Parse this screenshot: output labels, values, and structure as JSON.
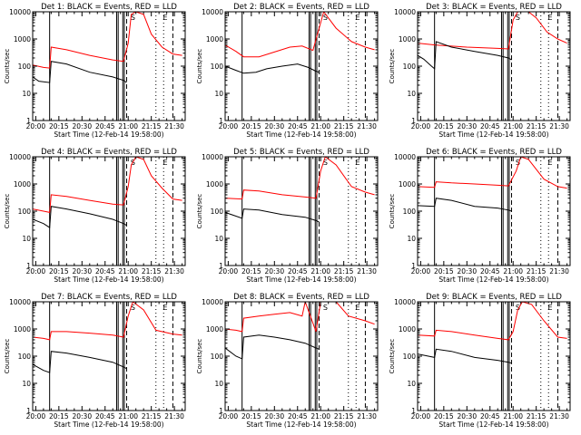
{
  "chart_data": {
    "type": "line",
    "grid": false,
    "legend": "none",
    "shared": {
      "x_tick_labels": [
        "20:00",
        "20:15",
        "20:30",
        "20:45",
        "21:00",
        "21:15",
        "21:30"
      ],
      "x_ticks_min": [
        0,
        15,
        30,
        45,
        60,
        75,
        90
      ],
      "xlim_min": [
        -2,
        97
      ],
      "xlabel": "Start Time (12-Feb-14 19:58:00)",
      "ylabel": "Counts/sec",
      "y_tick_labels": [
        "1",
        "10",
        "100",
        "1000",
        "10000"
      ],
      "y_ticks": [
        1,
        10,
        100,
        1000,
        10000
      ],
      "ylim": [
        1,
        10000
      ],
      "y_scale": "log",
      "colors": {
        "events": "#000000",
        "lld": "#ff0000",
        "axes": "#000000"
      },
      "solid_lines_min": [
        9,
        52.5,
        53.5,
        56.5,
        57.5
      ],
      "dashed_lines_min": [
        59,
        89
      ],
      "dotted_lines_min": [
        78,
        83
      ],
      "markers": [
        {
          "label": "S",
          "x_min": 61
        },
        {
          "label": "E",
          "x_min": 82
        }
      ]
    },
    "panels": [
      {
        "title": "Det 1: BLACK = Events, RED = LLD",
        "events": [
          [
            -2,
            40
          ],
          [
            2,
            28
          ],
          [
            9,
            25
          ],
          [
            10,
            150
          ],
          [
            20,
            120
          ],
          [
            35,
            60
          ],
          [
            50,
            40
          ],
          [
            57,
            30
          ],
          [
            59,
            25
          ]
        ],
        "lld": [
          [
            -2,
            110
          ],
          [
            5,
            90
          ],
          [
            9,
            85
          ],
          [
            10,
            500
          ],
          [
            20,
            400
          ],
          [
            35,
            250
          ],
          [
            50,
            170
          ],
          [
            57,
            150
          ],
          [
            60,
            700
          ],
          [
            62,
            8000
          ],
          [
            65,
            10000
          ],
          [
            70,
            8000
          ],
          [
            75,
            1500
          ],
          [
            82,
            500
          ],
          [
            89,
            280
          ],
          [
            95,
            250
          ]
        ]
      },
      {
        "title": "Det 2: BLACK = Events, RED = LLD",
        "events": [
          [
            -2,
            100
          ],
          [
            5,
            70
          ],
          [
            10,
            55
          ],
          [
            18,
            60
          ],
          [
            25,
            80
          ],
          [
            35,
            100
          ],
          [
            45,
            120
          ],
          [
            52,
            90
          ],
          [
            57,
            65
          ],
          [
            59,
            60
          ]
        ],
        "lld": [
          [
            -2,
            600
          ],
          [
            5,
            350
          ],
          [
            10,
            220
          ],
          [
            20,
            220
          ],
          [
            30,
            330
          ],
          [
            40,
            500
          ],
          [
            48,
            550
          ],
          [
            55,
            380
          ],
          [
            62,
            10000
          ],
          [
            70,
            2500
          ],
          [
            80,
            800
          ],
          [
            89,
            500
          ],
          [
            95,
            400
          ]
        ]
      },
      {
        "title": "Det 3: BLACK = Events, RED = LLD",
        "events": [
          [
            -2,
            250
          ],
          [
            2,
            180
          ],
          [
            7,
            100
          ],
          [
            9,
            80
          ],
          [
            10,
            800
          ],
          [
            20,
            500
          ],
          [
            35,
            350
          ],
          [
            50,
            250
          ],
          [
            57,
            200
          ],
          [
            59,
            170
          ]
        ],
        "lld": [
          [
            -2,
            700
          ],
          [
            10,
            600
          ],
          [
            30,
            500
          ],
          [
            50,
            450
          ],
          [
            57,
            430
          ],
          [
            60,
            5000
          ],
          [
            63,
            10000
          ],
          [
            70,
            10000
          ],
          [
            75,
            6000
          ],
          [
            82,
            1800
          ],
          [
            89,
            1000
          ],
          [
            95,
            700
          ]
        ]
      },
      {
        "title": "Det 4: BLACK = Events, RED = LLD",
        "events": [
          [
            -2,
            50
          ],
          [
            5,
            35
          ],
          [
            9,
            25
          ],
          [
            10,
            150
          ],
          [
            20,
            120
          ],
          [
            35,
            80
          ],
          [
            50,
            50
          ],
          [
            57,
            35
          ],
          [
            59,
            30
          ]
        ],
        "lld": [
          [
            -2,
            120
          ],
          [
            5,
            100
          ],
          [
            9,
            90
          ],
          [
            10,
            400
          ],
          [
            20,
            350
          ],
          [
            35,
            250
          ],
          [
            50,
            180
          ],
          [
            57,
            170
          ],
          [
            60,
            800
          ],
          [
            62,
            5000
          ],
          [
            65,
            10000
          ],
          [
            70,
            8000
          ],
          [
            75,
            2000
          ],
          [
            82,
            700
          ],
          [
            89,
            280
          ],
          [
            95,
            250
          ]
        ]
      },
      {
        "title": "Det 5: BLACK = Events, RED = LLD",
        "events": [
          [
            -2,
            90
          ],
          [
            9,
            55
          ],
          [
            10,
            120
          ],
          [
            20,
            110
          ],
          [
            35,
            75
          ],
          [
            50,
            60
          ],
          [
            57,
            45
          ],
          [
            59,
            40
          ]
        ],
        "lld": [
          [
            -2,
            300
          ],
          [
            9,
            280
          ],
          [
            10,
            600
          ],
          [
            20,
            550
          ],
          [
            35,
            400
          ],
          [
            50,
            330
          ],
          [
            57,
            300
          ],
          [
            60,
            3000
          ],
          [
            63,
            10000
          ],
          [
            70,
            5000
          ],
          [
            80,
            800
          ],
          [
            89,
            500
          ],
          [
            95,
            400
          ]
        ]
      },
      {
        "title": "Det 6: BLACK = Events, RED = LLD",
        "events": [
          [
            -2,
            160
          ],
          [
            9,
            150
          ],
          [
            10,
            300
          ],
          [
            20,
            250
          ],
          [
            35,
            150
          ],
          [
            50,
            130
          ],
          [
            57,
            110
          ],
          [
            59,
            100
          ]
        ],
        "lld": [
          [
            -2,
            800
          ],
          [
            9,
            750
          ],
          [
            10,
            1200
          ],
          [
            20,
            1100
          ],
          [
            35,
            1000
          ],
          [
            50,
            900
          ],
          [
            57,
            850
          ],
          [
            62,
            3000
          ],
          [
            65,
            10000
          ],
          [
            70,
            8000
          ],
          [
            80,
            1500
          ],
          [
            89,
            800
          ],
          [
            95,
            700
          ]
        ]
      },
      {
        "title": "Det 7: BLACK = Events, RED = LLD",
        "events": [
          [
            -2,
            50
          ],
          [
            5,
            30
          ],
          [
            9,
            25
          ],
          [
            10,
            150
          ],
          [
            20,
            130
          ],
          [
            35,
            90
          ],
          [
            50,
            60
          ],
          [
            57,
            40
          ],
          [
            59,
            35
          ]
        ],
        "lld": [
          [
            -2,
            500
          ],
          [
            5,
            450
          ],
          [
            9,
            400
          ],
          [
            10,
            800
          ],
          [
            20,
            800
          ],
          [
            35,
            700
          ],
          [
            50,
            600
          ],
          [
            57,
            500
          ],
          [
            60,
            3000
          ],
          [
            63,
            10000
          ],
          [
            70,
            5000
          ],
          [
            78,
            900
          ],
          [
            89,
            650
          ],
          [
            95,
            600
          ]
        ]
      },
      {
        "title": "Det 8: BLACK = Events, RED = LLD",
        "events": [
          [
            -2,
            200
          ],
          [
            5,
            100
          ],
          [
            9,
            80
          ],
          [
            10,
            500
          ],
          [
            20,
            600
          ],
          [
            30,
            500
          ],
          [
            40,
            400
          ],
          [
            50,
            300
          ],
          [
            57,
            200
          ],
          [
            59,
            180
          ]
        ],
        "lld": [
          [
            -2,
            1000
          ],
          [
            5,
            900
          ],
          [
            9,
            800
          ],
          [
            10,
            2500
          ],
          [
            20,
            3000
          ],
          [
            30,
            3500
          ],
          [
            40,
            4000
          ],
          [
            48,
            3000
          ],
          [
            50,
            10000
          ],
          [
            57,
            800
          ],
          [
            60,
            10000
          ],
          [
            70,
            10000
          ],
          [
            78,
            3000
          ],
          [
            89,
            2000
          ],
          [
            95,
            1500
          ]
        ]
      },
      {
        "title": "Det 9: BLACK = Events, RED = LLD",
        "events": [
          [
            -2,
            120
          ],
          [
            9,
            90
          ],
          [
            10,
            180
          ],
          [
            20,
            150
          ],
          [
            35,
            90
          ],
          [
            50,
            70
          ],
          [
            57,
            60
          ],
          [
            59,
            55
          ]
        ],
        "lld": [
          [
            -2,
            600
          ],
          [
            9,
            550
          ],
          [
            10,
            900
          ],
          [
            20,
            800
          ],
          [
            35,
            600
          ],
          [
            50,
            450
          ],
          [
            57,
            400
          ],
          [
            60,
            800
          ],
          [
            63,
            5000
          ],
          [
            66,
            10000
          ],
          [
            72,
            8000
          ],
          [
            80,
            2000
          ],
          [
            89,
            500
          ],
          [
            95,
            450
          ]
        ]
      }
    ]
  }
}
